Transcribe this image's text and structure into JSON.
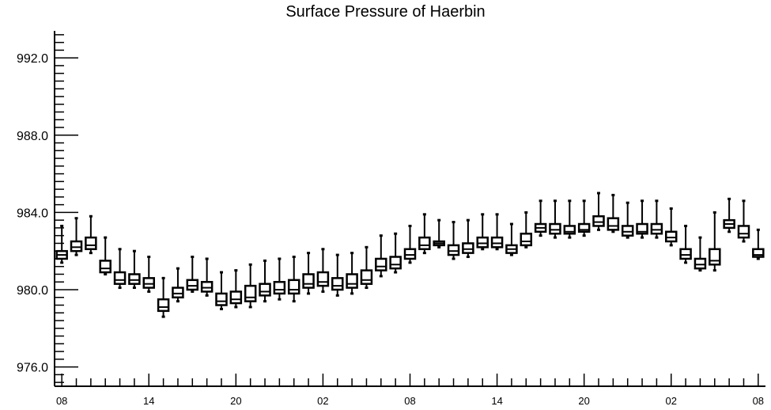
{
  "chart_data": {
    "type": "box",
    "title": "Surface Pressure of Haerbin",
    "xlabel": "",
    "ylabel": "",
    "ylim": [
      975.0,
      993.4
    ],
    "y_ticks": [
      "976.0",
      "980.0",
      "984.0",
      "988.0",
      "992.0"
    ],
    "y_tick_values": [
      976.0,
      980.0,
      984.0,
      988.0,
      992.0
    ],
    "x_tick_labels": [
      "08",
      "14",
      "20",
      "02",
      "08",
      "14",
      "20",
      "02",
      "08"
    ],
    "x_tick_steps": [
      0,
      6,
      12,
      18,
      24,
      30,
      36,
      42,
      48
    ],
    "x_range": [
      -0.5,
      48.5
    ],
    "grid": false,
    "series": [
      {
        "values": [
          {
            "step": 0,
            "min": 981.4,
            "q1": 981.6,
            "median": 981.8,
            "q3": 982.0,
            "max": 983.3
          },
          {
            "step": 1,
            "min": 981.8,
            "q1": 982.0,
            "median": 982.2,
            "q3": 982.5,
            "max": 983.7
          },
          {
            "step": 2,
            "min": 981.9,
            "q1": 982.1,
            "median": 982.3,
            "q3": 982.7,
            "max": 983.8
          },
          {
            "step": 3,
            "min": 980.8,
            "q1": 980.9,
            "median": 981.1,
            "q3": 981.5,
            "max": 982.7
          },
          {
            "step": 4,
            "min": 980.1,
            "q1": 980.3,
            "median": 980.5,
            "q3": 980.9,
            "max": 982.1
          },
          {
            "step": 5,
            "min": 980.1,
            "q1": 980.3,
            "median": 980.5,
            "q3": 980.8,
            "max": 982.0
          },
          {
            "step": 6,
            "min": 979.9,
            "q1": 980.1,
            "median": 980.3,
            "q3": 980.6,
            "max": 981.7
          },
          {
            "step": 7,
            "min": 978.6,
            "q1": 978.9,
            "median": 979.1,
            "q3": 979.5,
            "max": 980.6
          },
          {
            "step": 8,
            "min": 979.4,
            "q1": 979.6,
            "median": 979.8,
            "q3": 980.1,
            "max": 981.1
          },
          {
            "step": 9,
            "min": 979.9,
            "q1": 980.0,
            "median": 980.2,
            "q3": 980.5,
            "max": 981.7
          },
          {
            "step": 10,
            "min": 979.7,
            "q1": 979.9,
            "median": 980.1,
            "q3": 980.4,
            "max": 981.6
          },
          {
            "step": 11,
            "min": 979.0,
            "q1": 979.2,
            "median": 979.4,
            "q3": 979.8,
            "max": 980.9
          },
          {
            "step": 12,
            "min": 979.1,
            "q1": 979.3,
            "median": 979.5,
            "q3": 979.9,
            "max": 981.0
          },
          {
            "step": 13,
            "min": 979.1,
            "q1": 979.4,
            "median": 979.6,
            "q3": 980.2,
            "max": 981.3
          },
          {
            "step": 14,
            "min": 979.4,
            "q1": 979.7,
            "median": 979.9,
            "q3": 980.3,
            "max": 981.5
          },
          {
            "step": 15,
            "min": 979.5,
            "q1": 979.8,
            "median": 980.0,
            "q3": 980.4,
            "max": 981.6
          },
          {
            "step": 16,
            "min": 979.4,
            "q1": 979.8,
            "median": 980.0,
            "q3": 980.5,
            "max": 981.7
          },
          {
            "step": 17,
            "min": 979.8,
            "q1": 980.1,
            "median": 980.3,
            "q3": 980.8,
            "max": 981.9
          },
          {
            "step": 18,
            "min": 979.9,
            "q1": 980.2,
            "median": 980.4,
            "q3": 980.9,
            "max": 982.1
          },
          {
            "step": 19,
            "min": 979.7,
            "q1": 980.0,
            "median": 980.2,
            "q3": 980.6,
            "max": 981.8
          },
          {
            "step": 20,
            "min": 979.8,
            "q1": 980.1,
            "median": 980.3,
            "q3": 980.8,
            "max": 981.9
          },
          {
            "step": 21,
            "min": 980.1,
            "q1": 980.3,
            "median": 980.5,
            "q3": 981.0,
            "max": 982.2
          },
          {
            "step": 22,
            "min": 980.7,
            "q1": 981.0,
            "median": 981.2,
            "q3": 981.6,
            "max": 982.8
          },
          {
            "step": 23,
            "min": 980.9,
            "q1": 981.1,
            "median": 981.3,
            "q3": 981.7,
            "max": 982.9
          },
          {
            "step": 24,
            "min": 981.4,
            "q1": 981.6,
            "median": 981.8,
            "q3": 982.1,
            "max": 983.3
          },
          {
            "step": 25,
            "min": 981.9,
            "q1": 982.1,
            "median": 982.3,
            "q3": 982.7,
            "max": 983.9
          },
          {
            "step": 26,
            "min": 982.2,
            "q1": 982.3,
            "median": 982.4,
            "q3": 982.5,
            "max": 983.6
          },
          {
            "step": 27,
            "min": 981.6,
            "q1": 981.8,
            "median": 982.0,
            "q3": 982.3,
            "max": 983.5
          },
          {
            "step": 28,
            "min": 981.7,
            "q1": 981.9,
            "median": 982.1,
            "q3": 982.4,
            "max": 983.6
          },
          {
            "step": 29,
            "min": 982.1,
            "q1": 982.2,
            "median": 982.4,
            "q3": 982.7,
            "max": 983.9
          },
          {
            "step": 30,
            "min": 982.1,
            "q1": 982.2,
            "median": 982.4,
            "q3": 982.7,
            "max": 983.9
          },
          {
            "step": 31,
            "min": 981.8,
            "q1": 981.9,
            "median": 982.1,
            "q3": 982.3,
            "max": 983.4
          },
          {
            "step": 32,
            "min": 982.2,
            "q1": 982.3,
            "median": 982.5,
            "q3": 982.9,
            "max": 984.0
          },
          {
            "step": 33,
            "min": 982.8,
            "q1": 983.0,
            "median": 983.2,
            "q3": 983.4,
            "max": 984.6
          },
          {
            "step": 34,
            "min": 982.7,
            "q1": 982.9,
            "median": 983.1,
            "q3": 983.4,
            "max": 984.6
          },
          {
            "step": 35,
            "min": 982.7,
            "q1": 982.9,
            "median": 983.0,
            "q3": 983.3,
            "max": 984.6
          },
          {
            "step": 36,
            "min": 982.8,
            "q1": 983.0,
            "median": 983.1,
            "q3": 983.4,
            "max": 984.6
          },
          {
            "step": 37,
            "min": 983.1,
            "q1": 983.3,
            "median": 983.5,
            "q3": 983.8,
            "max": 985.0
          },
          {
            "step": 38,
            "min": 983.0,
            "q1": 983.1,
            "median": 983.3,
            "q3": 983.7,
            "max": 984.9
          },
          {
            "step": 39,
            "min": 982.7,
            "q1": 982.8,
            "median": 983.0,
            "q3": 983.3,
            "max": 984.5
          },
          {
            "step": 40,
            "min": 982.7,
            "q1": 982.9,
            "median": 983.0,
            "q3": 983.4,
            "max": 984.6
          },
          {
            "step": 41,
            "min": 982.7,
            "q1": 982.9,
            "median": 983.1,
            "q3": 983.4,
            "max": 984.6
          },
          {
            "step": 42,
            "min": 982.3,
            "q1": 982.5,
            "median": 982.7,
            "q3": 983.0,
            "max": 984.2
          },
          {
            "step": 43,
            "min": 981.4,
            "q1": 981.6,
            "median": 981.8,
            "q3": 982.1,
            "max": 983.3
          },
          {
            "step": 44,
            "min": 981.0,
            "q1": 981.1,
            "median": 981.3,
            "q3": 981.6,
            "max": 982.7
          },
          {
            "step": 45,
            "min": 981.0,
            "q1": 981.3,
            "median": 981.5,
            "q3": 982.1,
            "max": 984.0
          },
          {
            "step": 46,
            "min": 983.0,
            "q1": 983.2,
            "median": 983.4,
            "q3": 983.6,
            "max": 984.7
          },
          {
            "step": 47,
            "min": 982.5,
            "q1": 982.7,
            "median": 982.9,
            "q3": 983.3,
            "max": 984.6
          },
          {
            "step": 48,
            "min": 981.6,
            "q1": 981.7,
            "median": 981.8,
            "q3": 982.1,
            "max": 983.1
          }
        ]
      }
    ]
  }
}
